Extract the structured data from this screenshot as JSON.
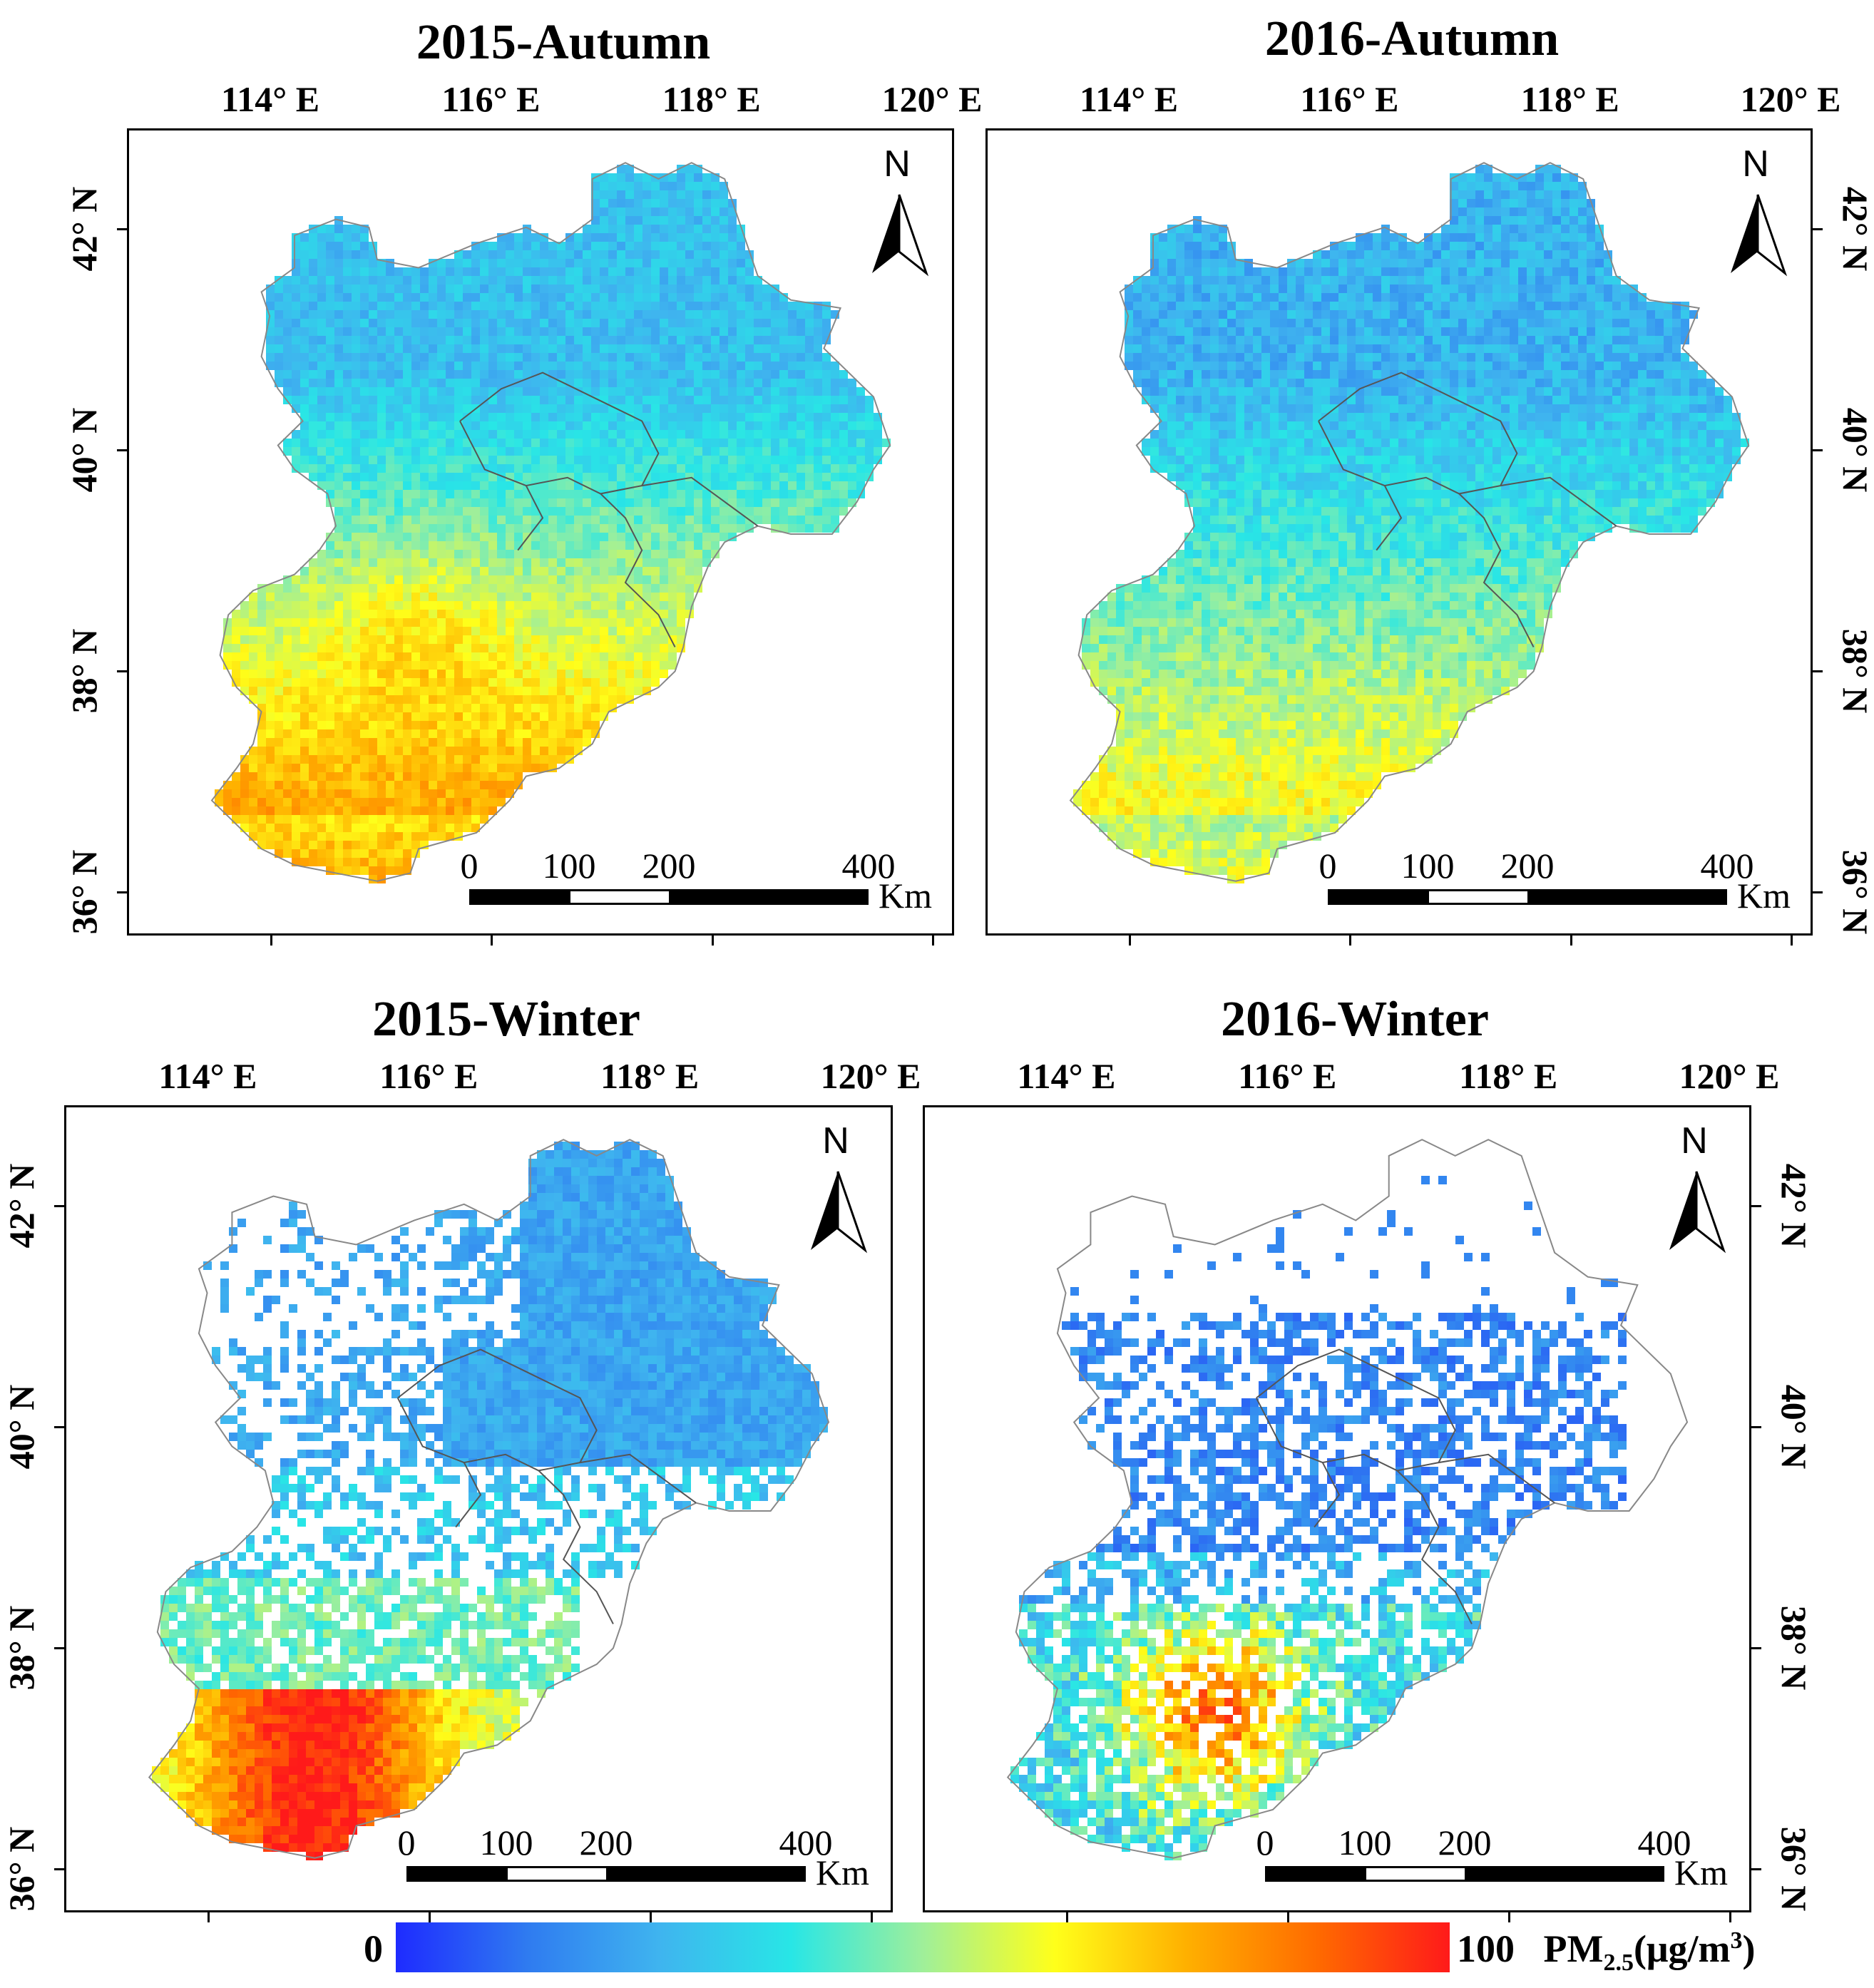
{
  "panels": [
    {
      "title": "2015-Autumn",
      "scenario": "autumn2015"
    },
    {
      "title": "2016-Autumn",
      "scenario": "autumn2016"
    },
    {
      "title": "2015-Winter",
      "scenario": "winter2015"
    },
    {
      "title": "2016-Winter",
      "scenario": "winter2016"
    }
  ],
  "axes": {
    "lon_labels": [
      "114° E",
      "116° E",
      "118° E",
      "120° E"
    ],
    "lat_labels": [
      "42° N",
      "40° N",
      "38° N",
      "36° N"
    ],
    "lon_values": [
      114,
      116,
      118,
      120
    ],
    "lat_values": [
      42,
      40,
      38,
      36
    ]
  },
  "north_arrow": {
    "label": "N"
  },
  "scale_bar": {
    "labels": [
      "0",
      "100",
      "200",
      "400"
    ],
    "values": [
      0,
      100,
      200,
      400
    ],
    "unit": "Km"
  },
  "legend": {
    "min_label": "0",
    "max_label": "100",
    "variable": "PM",
    "subscript": "2.5",
    "unit_open": "(μg/m",
    "unit_sup": "3",
    "unit_close": ")",
    "range": [
      0,
      100
    ],
    "colors": [
      "#1e2bff",
      "#2f7bf0",
      "#3fb4ef",
      "#28e6e6",
      "#9fef9a",
      "#ffff1a",
      "#ffb000",
      "#ff6a00",
      "#ff1a1a"
    ]
  },
  "colors": {
    "boundary": "#888888",
    "frame": "#000000"
  }
}
